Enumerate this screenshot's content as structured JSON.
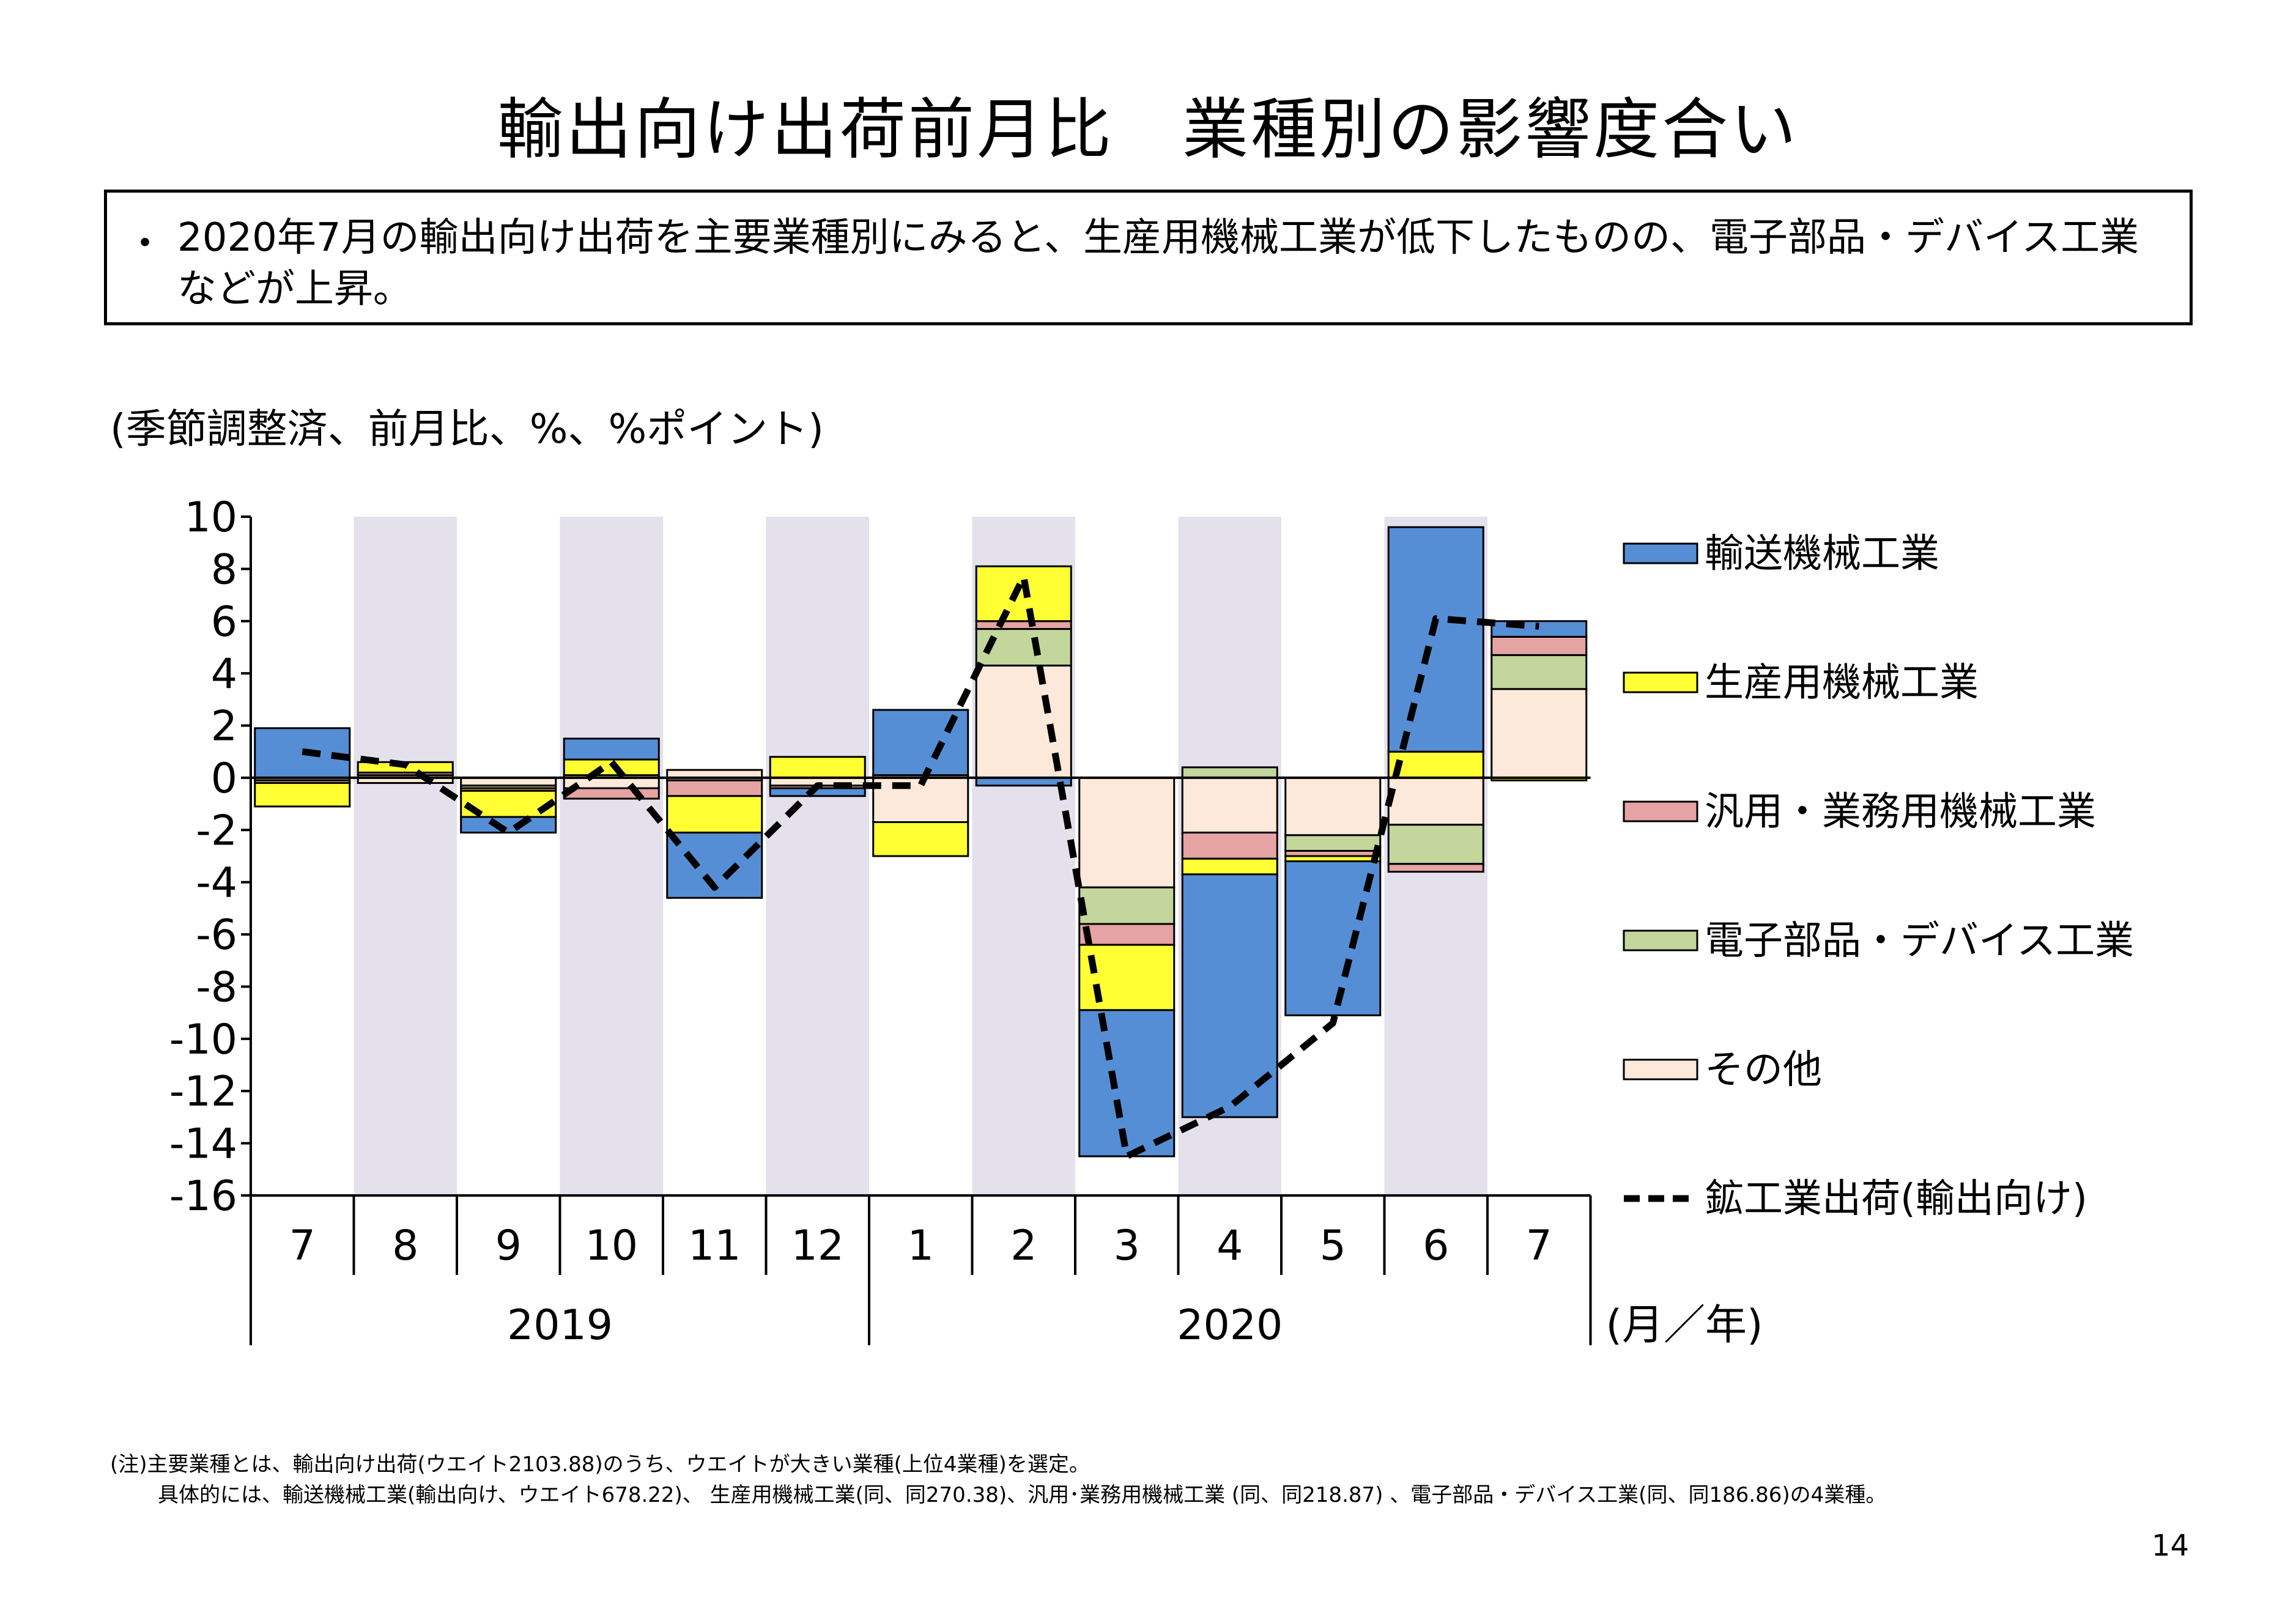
{
  "title": "輸出向け出荷前月比　業種別の影響度合い",
  "summary": {
    "bullet": "・",
    "text": "2020年7月の輸出向け出荷を主要業種別にみると、生産用機械工業が低下したものの、電子部品・デバイス工業などが上昇。"
  },
  "unit_note": "(季節調整済、前月比、%、%ポイント)",
  "footnote": {
    "line1": "(注)主要業種とは、輸出向け出荷(ウエイト2103.88)のうち、ウエイトが大きい業種(上位4業種)を選定。",
    "line2": "具体的には、輸送機械工業(輸出向け、ウエイト678.22)、 生産用機械工業(同、同270.38)、汎用･業務用機械工業 (同、同218.87) 、電子部品・デバイス工業(同、同186.86)の4業種。"
  },
  "page_number": "14",
  "chart_data": {
    "type": "bar",
    "stacked": true,
    "categories": [
      "7",
      "8",
      "9",
      "10",
      "11",
      "12",
      "1",
      "2",
      "3",
      "4",
      "5",
      "6",
      "7"
    ],
    "year_groups": [
      {
        "label": "2019",
        "start": 0,
        "end": 5
      },
      {
        "label": "2020",
        "start": 6,
        "end": 12
      }
    ],
    "axis_unit": "(月／年)",
    "ylim": [
      -16,
      10
    ],
    "yticks": [
      10,
      8,
      6,
      4,
      2,
      0,
      -2,
      -4,
      -6,
      -8,
      -10,
      -12,
      -14,
      -16
    ],
    "shaded_categories": [
      1,
      3,
      5,
      7,
      9,
      11
    ],
    "shade_color": "#e4e0ec",
    "legend_position": "right",
    "series": [
      {
        "name": "その他",
        "color": "#fde9d9",
        "values": [
          0.0,
          -0.2,
          -0.3,
          -0.4,
          0.3,
          -0.3,
          -1.7,
          4.3,
          -4.2,
          -2.1,
          -2.2,
          -1.8,
          3.4
        ]
      },
      {
        "name": "電子部品・デバイス工業",
        "color": "#c3d69b",
        "values": [
          -0.1,
          0.1,
          -0.1,
          0.1,
          -0.1,
          0.0,
          0.0,
          1.4,
          -1.4,
          0.4,
          -0.6,
          -1.5,
          1.3
        ]
      },
      {
        "name": "汎用・業務用機械工業",
        "color": "#e6a3a3",
        "values": [
          -0.1,
          0.1,
          -0.1,
          -0.4,
          -0.6,
          -0.1,
          0.1,
          0.3,
          -0.8,
          -1.0,
          -0.2,
          -0.3,
          0.7
        ]
      },
      {
        "name": "生産用機械工業",
        "color": "#ffff33",
        "values": [
          -0.9,
          0.4,
          -1.0,
          0.6,
          -1.4,
          0.8,
          -1.3,
          2.1,
          -2.5,
          -0.6,
          -0.2,
          1.0,
          -0.1
        ]
      },
      {
        "name": "輸送機械工業",
        "color": "#558ed5",
        "values": [
          1.9,
          0.0,
          -0.6,
          0.8,
          -2.5,
          -0.3,
          2.5,
          -0.3,
          -5.6,
          -9.3,
          -5.9,
          8.6,
          0.6
        ]
      }
    ],
    "legend_order": [
      "輸送機械工業",
      "生産用機械工業",
      "汎用・業務用機械工業",
      "電子部品・デバイス工業",
      "その他",
      "鉱工業出荷(輸出向け)"
    ],
    "line": {
      "name": "鉱工業出荷(輸出向け)",
      "style": "dashed",
      "color": "#000000",
      "values": [
        1.0,
        0.5,
        -2.1,
        0.6,
        -4.2,
        -0.3,
        -0.3,
        7.7,
        -14.5,
        -12.6,
        -9.4,
        6.1,
        5.8
      ]
    }
  }
}
